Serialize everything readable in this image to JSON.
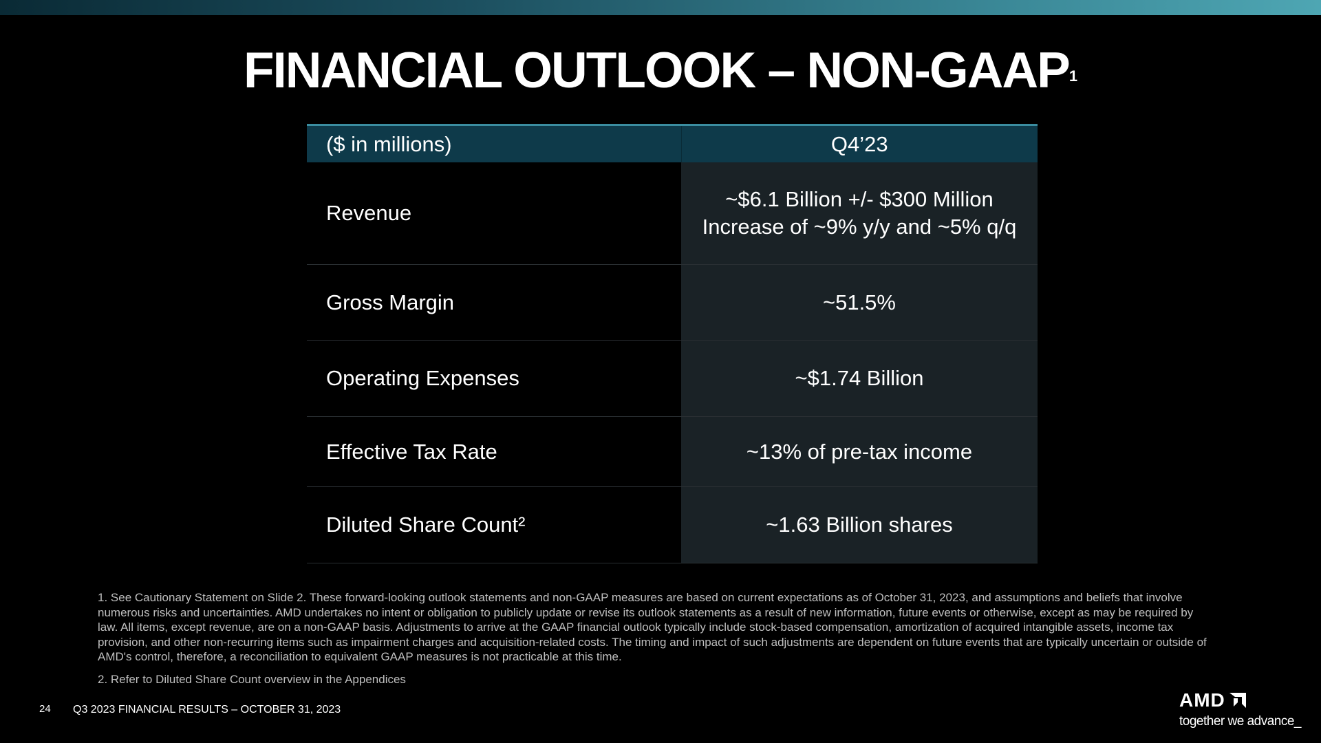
{
  "slide": {
    "title": "FINANCIAL OUTLOOK – NON-GAAP",
    "title_sup": "1",
    "page_number": "24",
    "footer": "Q3 2023 FINANCIAL RESULTS – OCTOBER 31, 2023"
  },
  "table": {
    "header": {
      "col1": "($ in millions)",
      "col2": "Q4’23"
    },
    "rows": [
      {
        "label": "Revenue",
        "lines": [
          "~$6.1 Billion +/- $300 Million",
          "Increase of ~9% y/y and ~5% q/q"
        ]
      },
      {
        "label": "Gross Margin",
        "lines": [
          "~51.5%"
        ]
      },
      {
        "label": "Operating Expenses",
        "lines": [
          "~$1.74 Billion"
        ]
      },
      {
        "label": "Effective Tax Rate",
        "lines": [
          "~13% of pre-tax income"
        ]
      },
      {
        "label": "Diluted Share Count²",
        "lines": [
          "~1.63 Billion shares"
        ]
      }
    ]
  },
  "footnotes": {
    "note1": "1.  See Cautionary Statement on Slide 2. These forward-looking outlook statements and non-GAAP measures are based on current expectations as of October 31, 2023, and assumptions and beliefs that involve numerous risks and uncertainties. AMD undertakes no intent or obligation to publicly update or revise its outlook statements as a result of new information, future events or otherwise, except as may be required by law. All items, except revenue, are on a non-GAAP basis. Adjustments to arrive at the GAAP financial outlook typically include stock-based compensation, amortization of acquired intangible assets, income tax provision, and other non-recurring items such as impairment charges and acquisition-related costs. The timing and impact of such adjustments are dependent on future events that are typically uncertain or outside of AMD's control, therefore, a reconciliation to equivalent GAAP measures is not practicable at this time.",
    "note2": "2.  Refer to Diluted Share Count overview in the Appendices"
  },
  "logo": {
    "wordmark": "AMD",
    "tagline": "together we advance_"
  },
  "colors": {
    "background": "#000000",
    "header_fill": "#0e3a4a",
    "value_cell_fill": "#1a2226",
    "accent": "#3b8da0"
  }
}
